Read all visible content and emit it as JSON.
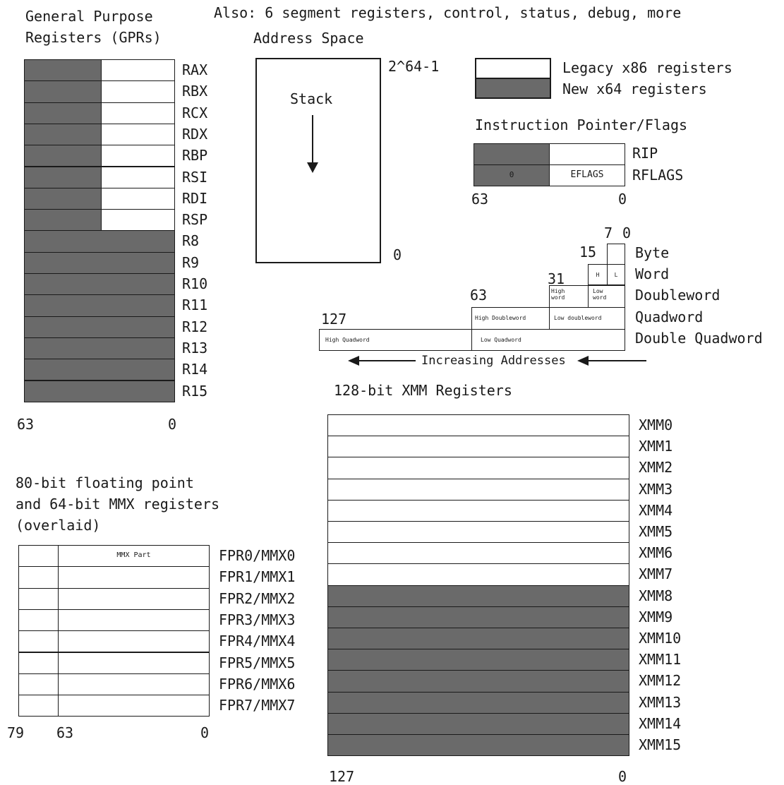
{
  "gpr": {
    "title1": "General Purpose",
    "title2": "Registers (GPRs)",
    "legacy": [
      "RAX",
      "RBX",
      "RCX",
      "RDX",
      "RBP",
      "RSI",
      "RDI",
      "RSP"
    ],
    "new": [
      "R8",
      "R9",
      "R10",
      "R11",
      "R12",
      "R13",
      "R14",
      "R15"
    ],
    "bit_hi": "63",
    "bit_lo": "0"
  },
  "also_note": "Also: 6 segment registers, control, status, debug, more",
  "address_space": {
    "title": "Address Space",
    "top": "2^64-1",
    "bottom": "0",
    "stack": "Stack"
  },
  "legend": {
    "legacy": "Legacy x86 registers",
    "new": "New x64 registers",
    "colors": {
      "legacy": "#ffffff",
      "new": "#6a6a6a"
    }
  },
  "ip_flags": {
    "title": "Instruction Pointer/Flags",
    "rip": "RIP",
    "rflags": "RFLAGS",
    "zero": "0",
    "eflags": "EFLAGS",
    "bit_hi": "63",
    "bit_lo": "0"
  },
  "sizes": {
    "b7": "7",
    "b0": "0",
    "b15": "15",
    "b31": "31",
    "b63": "63",
    "b127": "127",
    "byte": "Byte",
    "word": "Word",
    "dword": "Doubleword",
    "qword": "Quadword",
    "dqword": "Double Quadword",
    "h": "H",
    "l": "L",
    "high_word": "High word",
    "low_word": "Low word",
    "high_dword": "High Doubleword",
    "low_dword": "Low doubleword",
    "high_qword": "High Quadword",
    "low_qword": "Low Quadword",
    "increasing": "Increasing Addresses"
  },
  "xmm": {
    "title": "128-bit XMM Registers",
    "legacy": [
      "XMM0",
      "XMM1",
      "XMM2",
      "XMM3",
      "XMM4",
      "XMM5",
      "XMM6",
      "XMM7"
    ],
    "new": [
      "XMM8",
      "XMM9",
      "XMM10",
      "XMM11",
      "XMM12",
      "XMM13",
      "XMM14",
      "XMM15"
    ],
    "bit_hi": "127",
    "bit_lo": "0"
  },
  "fpu": {
    "title1": "80-bit floating point",
    "title2": "and 64-bit MMX registers",
    "title3": "(overlaid)",
    "mmx_part": "MMX Part",
    "regs": [
      "FPR0/MMX0",
      "FPR1/MMX1",
      "FPR2/MMX2",
      "FPR3/MMX3",
      "FPR4/MMX4",
      "FPR5/MMX5",
      "FPR6/MMX6",
      "FPR7/MMX7"
    ],
    "bit_79": "79",
    "bit_63": "63",
    "bit_0": "0"
  }
}
